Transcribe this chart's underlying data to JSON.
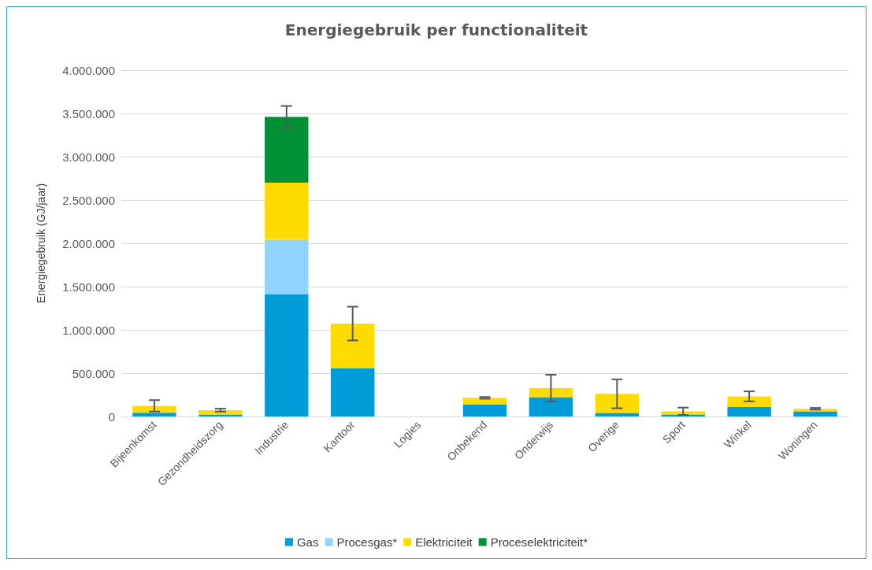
{
  "chart_data": {
    "type": "bar",
    "title": "Energiegebruik per functionaliteit",
    "ylabel": "Energiegebruik (GJ/jaar)",
    "stacked": true,
    "legend": "bottom",
    "grid": "y",
    "categories": [
      "Bijeenkomst",
      "Gezondheidszorg",
      "Industrie",
      "Kantoor",
      "Logies",
      "Onbekend",
      "Onderwijs",
      "Overige",
      "Sport",
      "Winkel",
      "Woningen"
    ],
    "ylim": [
      0,
      4000000
    ],
    "yticks": [
      {
        "value": 0,
        "label": "0"
      },
      {
        "value": 500000,
        "label": "500.000"
      },
      {
        "value": 1000000,
        "label": "1.000.000"
      },
      {
        "value": 1500000,
        "label": "1.500.000"
      },
      {
        "value": 2000000,
        "label": "2.000.000"
      },
      {
        "value": 2500000,
        "label": "2.500.000"
      },
      {
        "value": 3000000,
        "label": "3.000.000"
      },
      {
        "value": 3500000,
        "label": "3.500.000"
      },
      {
        "value": 4000000,
        "label": "4.000.000"
      }
    ],
    "series": [
      {
        "name": "Gas",
        "color": "#009cd8",
        "values": [
          44000,
          23000,
          1410000,
          558000,
          null,
          136000,
          222000,
          40000,
          23000,
          109000,
          60000
        ]
      },
      {
        "name": "Procesgas*",
        "color": "#8fd3fe",
        "values": [
          0,
          0,
          630000,
          0,
          0,
          0,
          0,
          0,
          0,
          0,
          0
        ]
      },
      {
        "name": "Elektriciteit",
        "color": "#ffdb00",
        "values": [
          79000,
          50000,
          660000,
          515000,
          null,
          79000,
          106000,
          222000,
          37000,
          123000,
          29000
        ],
        "errors": [
          66000,
          17000,
          null,
          195000,
          null,
          10000,
          154000,
          167000,
          43000,
          58000,
          10000
        ]
      },
      {
        "name": "Proceselektriciteit*",
        "color": "#009036",
        "values": [
          0,
          0,
          760000,
          0,
          0,
          0,
          0,
          0,
          0,
          0,
          0
        ],
        "errors": [
          null,
          null,
          125000,
          null,
          null,
          null,
          null,
          null,
          null,
          null,
          null
        ]
      }
    ]
  }
}
